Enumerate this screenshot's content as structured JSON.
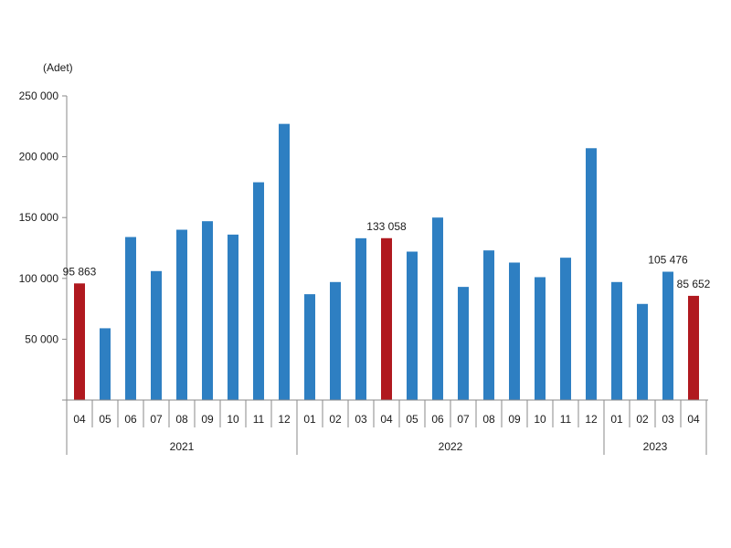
{
  "chart_data": {
    "type": "bar",
    "unit_label": "(Adet)",
    "ylim": [
      0,
      250000
    ],
    "yticks": [
      {
        "value": 0,
        "label": ""
      },
      {
        "value": 50000,
        "label": "50 000"
      },
      {
        "value": 100000,
        "label": "100 000"
      },
      {
        "value": 150000,
        "label": "150 000"
      },
      {
        "value": 200000,
        "label": "200 000"
      },
      {
        "value": 250000,
        "label": "250 000"
      }
    ],
    "categories": [
      "04",
      "05",
      "06",
      "07",
      "08",
      "09",
      "10",
      "11",
      "12",
      "01",
      "02",
      "03",
      "04",
      "05",
      "06",
      "07",
      "08",
      "09",
      "10",
      "11",
      "12",
      "01",
      "02",
      "03",
      "04"
    ],
    "values": [
      95863,
      59000,
      134000,
      106000,
      140000,
      147000,
      136000,
      179000,
      227000,
      87000,
      97000,
      133000,
      133058,
      122000,
      150000,
      93000,
      123000,
      113000,
      101000,
      117000,
      207000,
      97000,
      79000,
      105476,
      85652
    ],
    "highlight": [
      0,
      12,
      24
    ],
    "data_labels": [
      {
        "index": 0,
        "text": "95 863"
      },
      {
        "index": 12,
        "text": "133 058"
      },
      {
        "index": 23,
        "text": "105 476"
      },
      {
        "index": 24,
        "text": "85 652"
      }
    ],
    "groups": [
      {
        "label": "2021",
        "start": 0,
        "end": 8
      },
      {
        "label": "2022",
        "start": 9,
        "end": 20
      },
      {
        "label": "2023",
        "start": 21,
        "end": 24
      }
    ],
    "colors": {
      "bar": "#2e7fc2",
      "highlight": "#b0191f",
      "axis": "#8a8a8a",
      "text": "#1a1a1a"
    },
    "grid": false,
    "legend": "none"
  }
}
